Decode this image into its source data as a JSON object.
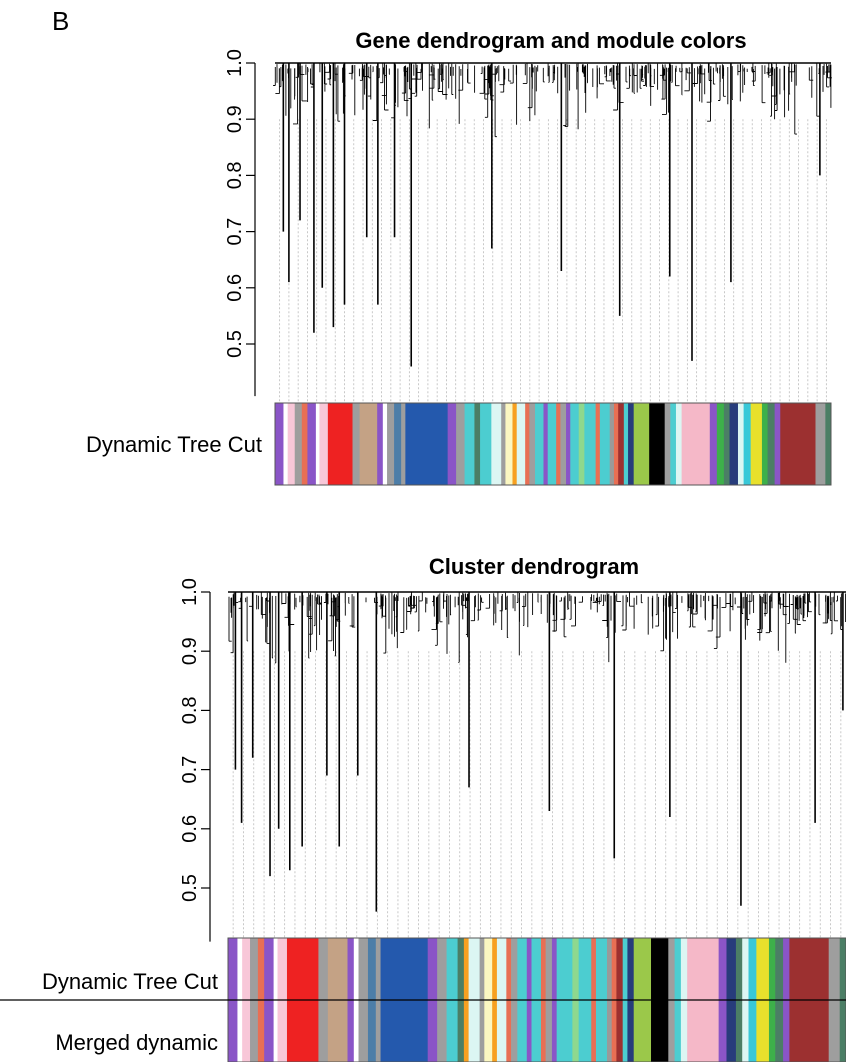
{
  "panel_label": "B",
  "colors": {
    "purple": "#8a55c7",
    "white": "#ffffff",
    "light_pink": "#f8c7d8",
    "gray": "#9e9e9e",
    "red": "#ee2222",
    "salmon": "#e86f54",
    "tan": "#c4a285",
    "blue": "#2459ad",
    "turquoise": "#4ccdd0",
    "light_cyan": "#dcf6f3",
    "light_yellow": "#fbf7c2",
    "orange": "#f7a020",
    "midnight_blue": "#273c7b",
    "green_yellow": "#9bc84a",
    "black": "#000000",
    "pink": "#f5b8c8",
    "dark_green": "#336933",
    "yellow": "#e8e02c",
    "green": "#3db04a",
    "brown": "#9c3030",
    "sea_green": "#4b7e65",
    "steel_blue": "#4d7ea8",
    "light_green": "#8ed88e",
    "grey60": "#9a9a9a",
    "dark_red": "#7d1a1a",
    "royal_blue": "#4063d8",
    "cyan": "#38c8d8",
    "dark_turquoise": "#1b8f8f"
  },
  "chart_data": [
    {
      "type": "dendrogram",
      "title": "Gene dendrogram and module colors",
      "ylabel": "",
      "ylim": [
        0.45,
        1.0
      ],
      "yticks": [
        "0.5",
        "0.6",
        "0.7",
        "0.8",
        "0.9",
        "1.0"
      ],
      "ytick_values": [
        0.5,
        0.6,
        0.7,
        0.8,
        0.9,
        1.0
      ],
      "merge_height": 1.0,
      "deep_branches": [
        {
          "x": 0.015,
          "min": 0.7
        },
        {
          "x": 0.025,
          "min": 0.61
        },
        {
          "x": 0.045,
          "min": 0.72
        },
        {
          "x": 0.07,
          "min": 0.52
        },
        {
          "x": 0.085,
          "min": 0.6
        },
        {
          "x": 0.105,
          "min": 0.53
        },
        {
          "x": 0.125,
          "min": 0.57
        },
        {
          "x": 0.165,
          "min": 0.69
        },
        {
          "x": 0.185,
          "min": 0.57
        },
        {
          "x": 0.215,
          "min": 0.69
        },
        {
          "x": 0.245,
          "min": 0.46
        },
        {
          "x": 0.39,
          "min": 0.67
        },
        {
          "x": 0.515,
          "min": 0.63
        },
        {
          "x": 0.62,
          "min": 0.55
        },
        {
          "x": 0.71,
          "min": 0.62
        },
        {
          "x": 0.75,
          "min": 0.47
        },
        {
          "x": 0.82,
          "min": 0.61
        },
        {
          "x": 0.98,
          "min": 0.8
        }
      ],
      "color_rows": [
        {
          "label": "Dynamic Tree Cut",
          "segments": [
            [
              "purple",
              0.012
            ],
            [
              "white",
              0.006
            ],
            [
              "light_pink",
              0.01
            ],
            [
              "gray",
              0.01
            ],
            [
              "salmon",
              0.008
            ],
            [
              "purple",
              0.012
            ],
            [
              "white",
              0.005
            ],
            [
              "light_pink",
              0.012
            ],
            [
              "red",
              0.035
            ],
            [
              "gray",
              0.01
            ],
            [
              "tan",
              0.025
            ],
            [
              "purple",
              0.008
            ],
            [
              "white",
              0.006
            ],
            [
              "gray",
              0.01
            ],
            [
              "steel_blue",
              0.01
            ],
            [
              "gray",
              0.006
            ],
            [
              "blue",
              0.06
            ],
            [
              "purple",
              0.012
            ],
            [
              "gray",
              0.012
            ],
            [
              "turquoise",
              0.014
            ],
            [
              "sea_green",
              0.008
            ],
            [
              "turquoise",
              0.016
            ],
            [
              "light_cyan",
              0.014
            ],
            [
              "gray",
              0.006
            ],
            [
              "light_yellow",
              0.01
            ],
            [
              "orange",
              0.006
            ],
            [
              "light_cyan",
              0.012
            ],
            [
              "salmon",
              0.006
            ],
            [
              "gray",
              0.008
            ],
            [
              "turquoise",
              0.012
            ],
            [
              "purple",
              0.006
            ],
            [
              "turquoise",
              0.012
            ],
            [
              "salmon",
              0.006
            ],
            [
              "gray",
              0.008
            ],
            [
              "purple",
              0.006
            ],
            [
              "turquoise",
              0.012
            ],
            [
              "light_green",
              0.008
            ],
            [
              "turquoise",
              0.016
            ],
            [
              "salmon",
              0.006
            ],
            [
              "turquoise",
              0.014
            ],
            [
              "grey60",
              0.006
            ],
            [
              "salmon",
              0.006
            ],
            [
              "brown",
              0.008
            ],
            [
              "turquoise",
              0.006
            ],
            [
              "midnight_blue",
              0.008
            ],
            [
              "green_yellow",
              0.022
            ],
            [
              "black",
              0.022
            ],
            [
              "gray",
              0.008
            ],
            [
              "turquoise",
              0.008
            ],
            [
              "light_cyan",
              0.008
            ],
            [
              "pink",
              0.04
            ],
            [
              "purple",
              0.01
            ],
            [
              "green",
              0.01
            ],
            [
              "sea_green",
              0.008
            ],
            [
              "midnight_blue",
              0.012
            ],
            [
              "light_cyan",
              0.008
            ],
            [
              "cyan",
              0.01
            ],
            [
              "yellow",
              0.016
            ],
            [
              "green",
              0.008
            ],
            [
              "sea_green",
              0.01
            ],
            [
              "purple",
              0.008
            ],
            [
              "brown",
              0.05
            ],
            [
              "gray",
              0.014
            ],
            [
              "sea_green",
              0.008
            ]
          ]
        }
      ]
    },
    {
      "type": "dendrogram",
      "title": "Cluster dendrogram",
      "ylabel": "",
      "ylim": [
        0.45,
        1.0
      ],
      "yticks": [
        "0.5",
        "0.6",
        "0.7",
        "0.8",
        "0.9",
        "1.0"
      ],
      "ytick_values": [
        0.5,
        0.6,
        0.7,
        0.8,
        0.9,
        1.0
      ],
      "merge_height": 1.0,
      "deep_branches": [
        {
          "x": 0.012,
          "min": 0.7
        },
        {
          "x": 0.022,
          "min": 0.61
        },
        {
          "x": 0.04,
          "min": 0.72
        },
        {
          "x": 0.068,
          "min": 0.52
        },
        {
          "x": 0.082,
          "min": 0.6
        },
        {
          "x": 0.1,
          "min": 0.53
        },
        {
          "x": 0.12,
          "min": 0.57
        },
        {
          "x": 0.16,
          "min": 0.69
        },
        {
          "x": 0.18,
          "min": 0.57
        },
        {
          "x": 0.21,
          "min": 0.69
        },
        {
          "x": 0.24,
          "min": 0.46
        },
        {
          "x": 0.39,
          "min": 0.67
        },
        {
          "x": 0.52,
          "min": 0.63
        },
        {
          "x": 0.625,
          "min": 0.55
        },
        {
          "x": 0.715,
          "min": 0.62
        },
        {
          "x": 0.83,
          "min": 0.47
        },
        {
          "x": 0.95,
          "min": 0.61
        },
        {
          "x": 0.995,
          "min": 0.8
        }
      ],
      "color_rows": [
        {
          "label": "Dynamic Tree Cut",
          "segments": [
            [
              "purple",
              0.012
            ],
            [
              "white",
              0.006
            ],
            [
              "light_pink",
              0.01
            ],
            [
              "gray",
              0.01
            ],
            [
              "salmon",
              0.008
            ],
            [
              "purple",
              0.012
            ],
            [
              "white",
              0.005
            ],
            [
              "light_pink",
              0.012
            ],
            [
              "red",
              0.04
            ],
            [
              "gray",
              0.012
            ],
            [
              "tan",
              0.025
            ],
            [
              "purple",
              0.008
            ],
            [
              "white",
              0.006
            ],
            [
              "gray",
              0.012
            ],
            [
              "steel_blue",
              0.01
            ],
            [
              "gray",
              0.006
            ],
            [
              "blue",
              0.06
            ],
            [
              "purple",
              0.012
            ],
            [
              "gray",
              0.012
            ],
            [
              "turquoise",
              0.014
            ],
            [
              "sea_green",
              0.008
            ],
            [
              "orange",
              0.006
            ],
            [
              "light_cyan",
              0.014
            ],
            [
              "gray",
              0.006
            ],
            [
              "light_yellow",
              0.01
            ],
            [
              "orange",
              0.006
            ],
            [
              "light_cyan",
              0.012
            ],
            [
              "salmon",
              0.006
            ],
            [
              "gray",
              0.008
            ],
            [
              "turquoise",
              0.012
            ],
            [
              "purple",
              0.006
            ],
            [
              "turquoise",
              0.012
            ],
            [
              "salmon",
              0.006
            ],
            [
              "gray",
              0.008
            ],
            [
              "purple",
              0.006
            ],
            [
              "turquoise",
              0.02
            ],
            [
              "light_green",
              0.008
            ],
            [
              "turquoise",
              0.016
            ],
            [
              "salmon",
              0.006
            ],
            [
              "turquoise",
              0.014
            ],
            [
              "grey60",
              0.006
            ],
            [
              "salmon",
              0.006
            ],
            [
              "brown",
              0.008
            ],
            [
              "turquoise",
              0.006
            ],
            [
              "midnight_blue",
              0.008
            ],
            [
              "green_yellow",
              0.022
            ],
            [
              "black",
              0.022
            ],
            [
              "gray",
              0.008
            ],
            [
              "turquoise",
              0.008
            ],
            [
              "light_cyan",
              0.008
            ],
            [
              "pink",
              0.04
            ],
            [
              "purple",
              0.01
            ],
            [
              "midnight_blue",
              0.012
            ],
            [
              "sea_green",
              0.008
            ],
            [
              "light_cyan",
              0.008
            ],
            [
              "cyan",
              0.01
            ],
            [
              "yellow",
              0.016
            ],
            [
              "green",
              0.008
            ],
            [
              "sea_green",
              0.01
            ],
            [
              "purple",
              0.008
            ],
            [
              "brown",
              0.05
            ],
            [
              "gray",
              0.014
            ],
            [
              "sea_green",
              0.008
            ]
          ]
        },
        {
          "label": "Merged dynamic",
          "segments": [
            [
              "purple",
              0.012
            ],
            [
              "white",
              0.006
            ],
            [
              "light_pink",
              0.01
            ],
            [
              "gray",
              0.01
            ],
            [
              "salmon",
              0.008
            ],
            [
              "purple",
              0.012
            ],
            [
              "white",
              0.005
            ],
            [
              "light_pink",
              0.012
            ],
            [
              "red",
              0.04
            ],
            [
              "gray",
              0.012
            ],
            [
              "tan",
              0.025
            ],
            [
              "purple",
              0.008
            ],
            [
              "white",
              0.006
            ],
            [
              "gray",
              0.012
            ],
            [
              "steel_blue",
              0.01
            ],
            [
              "gray",
              0.006
            ],
            [
              "blue",
              0.06
            ],
            [
              "purple",
              0.012
            ],
            [
              "gray",
              0.012
            ],
            [
              "turquoise",
              0.014
            ],
            [
              "sea_green",
              0.008
            ],
            [
              "orange",
              0.006
            ],
            [
              "light_cyan",
              0.014
            ],
            [
              "gray",
              0.006
            ],
            [
              "light_yellow",
              0.01
            ],
            [
              "orange",
              0.006
            ],
            [
              "light_cyan",
              0.012
            ],
            [
              "salmon",
              0.006
            ],
            [
              "gray",
              0.008
            ],
            [
              "turquoise",
              0.012
            ],
            [
              "purple",
              0.006
            ],
            [
              "turquoise",
              0.012
            ],
            [
              "salmon",
              0.006
            ],
            [
              "gray",
              0.008
            ],
            [
              "purple",
              0.006
            ],
            [
              "turquoise",
              0.02
            ],
            [
              "light_green",
              0.008
            ],
            [
              "turquoise",
              0.016
            ],
            [
              "salmon",
              0.006
            ],
            [
              "turquoise",
              0.014
            ],
            [
              "grey60",
              0.006
            ],
            [
              "salmon",
              0.006
            ],
            [
              "brown",
              0.008
            ],
            [
              "turquoise",
              0.006
            ],
            [
              "midnight_blue",
              0.008
            ],
            [
              "green_yellow",
              0.022
            ],
            [
              "black",
              0.022
            ],
            [
              "gray",
              0.008
            ],
            [
              "turquoise",
              0.008
            ],
            [
              "light_cyan",
              0.008
            ],
            [
              "pink",
              0.04
            ],
            [
              "purple",
              0.01
            ],
            [
              "midnight_blue",
              0.012
            ],
            [
              "sea_green",
              0.008
            ],
            [
              "light_cyan",
              0.008
            ],
            [
              "cyan",
              0.01
            ],
            [
              "yellow",
              0.016
            ],
            [
              "green",
              0.008
            ],
            [
              "sea_green",
              0.01
            ],
            [
              "purple",
              0.008
            ],
            [
              "brown",
              0.05
            ],
            [
              "gray",
              0.014
            ],
            [
              "sea_green",
              0.008
            ]
          ]
        }
      ]
    }
  ]
}
